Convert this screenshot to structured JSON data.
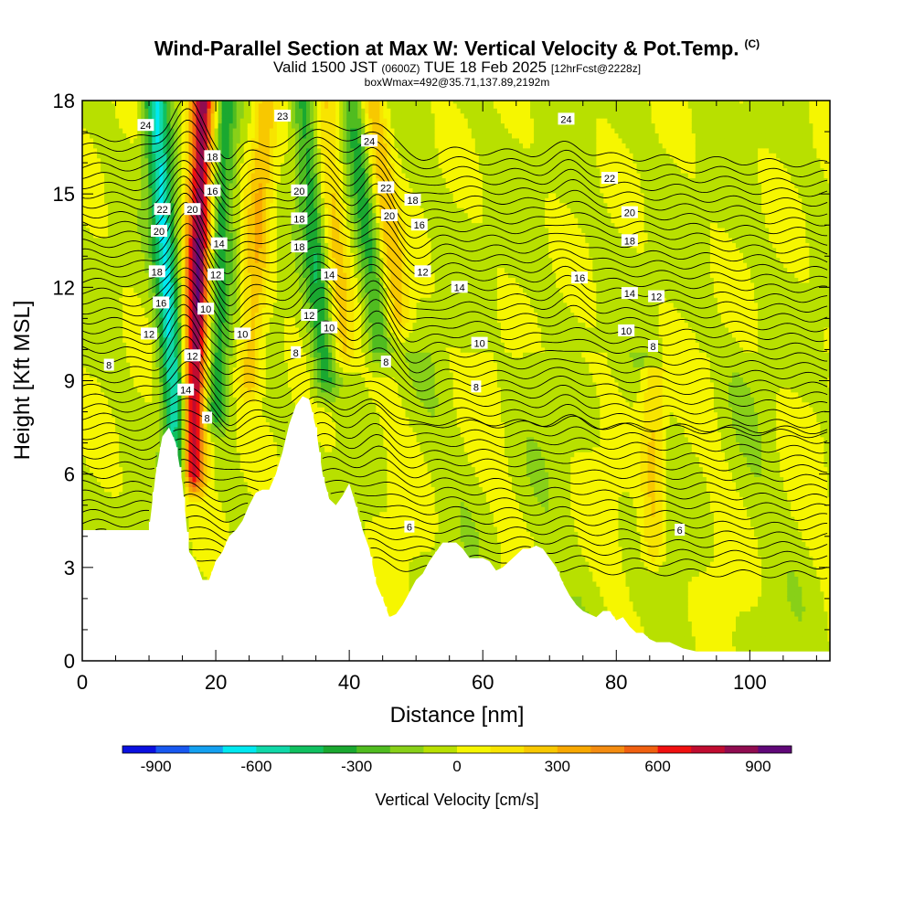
{
  "header": {
    "title": "Wind-Parallel Section at Max W: Vertical Velocity & Pot.Temp.",
    "copyright": "(C)",
    "valid_prefix": "Valid 1500 JST",
    "valid_utc": "(0600Z)",
    "valid_date": "TUE 18 Feb 2025",
    "forecast": "[12hrFcst@2228z]",
    "boxwmax": "boxWmax=492@35.71,137.89,2192m"
  },
  "chart_data": {
    "type": "heatmap",
    "title": "Wind-Parallel Section at Max W: Vertical Velocity & Pot.Temp.",
    "xlabel": "Distance [nm]",
    "ylabel": "Height [Kft MSL]",
    "xlim": [
      0,
      112
    ],
    "ylim": [
      0,
      18
    ],
    "x_ticks": [
      0,
      20,
      40,
      60,
      80,
      100
    ],
    "y_ticks": [
      0,
      3,
      6,
      9,
      12,
      15,
      18
    ],
    "colorbar": {
      "title": "Vertical Velocity [cm/s]",
      "tick_values": [
        -900,
        -600,
        -300,
        0,
        300,
        600,
        900
      ],
      "tick_labels": [
        "-900",
        "-600",
        "-300",
        "0",
        "300",
        "600",
        "900"
      ],
      "levels": [
        -1000,
        -900,
        -800,
        -700,
        -600,
        -500,
        -400,
        -300,
        -200,
        -100,
        0,
        100,
        200,
        300,
        400,
        500,
        600,
        700,
        800,
        900,
        1000
      ],
      "colors": [
        "#0a10e0",
        "#1858f0",
        "#14a0f0",
        "#00e8f0",
        "#10d8a8",
        "#10c060",
        "#1aa830",
        "#50bc20",
        "#88d018",
        "#b8e000",
        "#f6f600",
        "#f8e400",
        "#f8c800",
        "#f8a800",
        "#f48c10",
        "#f06010",
        "#f01010",
        "#c00c30",
        "#900c50",
        "#600878"
      ]
    },
    "terrain": {
      "x": [
        0,
        10,
        11,
        12,
        13,
        14,
        15,
        16,
        17,
        18,
        19,
        20,
        21,
        22,
        23,
        24,
        25,
        26,
        27,
        28,
        29,
        30,
        31,
        32,
        33,
        34,
        35,
        36,
        37,
        38,
        39,
        40,
        41,
        42,
        43,
        44,
        45,
        46,
        47,
        48,
        49,
        50,
        51,
        52,
        53,
        54,
        55,
        56,
        57,
        58,
        59,
        60,
        61,
        62,
        63,
        64,
        65,
        66,
        67,
        68,
        69,
        70,
        71,
        72,
        73,
        74,
        75,
        76,
        77,
        78,
        79,
        80,
        81,
        82,
        83,
        84,
        85,
        86,
        88,
        90,
        92,
        95,
        100,
        105,
        112
      ],
      "height": [
        4.2,
        4.2,
        6.0,
        7.2,
        7.5,
        7.0,
        5.7,
        3.5,
        3.2,
        2.6,
        2.6,
        3.2,
        3.5,
        4.0,
        4.2,
        4.5,
        5.0,
        5.4,
        5.5,
        5.5,
        6.0,
        6.7,
        7.6,
        8.2,
        8.5,
        8.4,
        7.5,
        6.0,
        5.2,
        5.0,
        5.3,
        5.7,
        5.0,
        4.2,
        3.6,
        2.5,
        2.0,
        1.4,
        1.5,
        1.8,
        2.2,
        2.6,
        2.8,
        3.2,
        3.5,
        3.8,
        3.8,
        3.8,
        3.6,
        3.3,
        3.3,
        3.3,
        3.2,
        2.9,
        3.0,
        3.2,
        3.4,
        3.6,
        3.6,
        3.7,
        3.6,
        3.3,
        3.0,
        2.5,
        2.1,
        1.8,
        1.6,
        1.5,
        1.4,
        1.6,
        1.6,
        1.3,
        1.4,
        1.1,
        0.9,
        0.9,
        0.7,
        0.6,
        0.6,
        0.4,
        0.3,
        0.3,
        0.3,
        0.3,
        0.3
      ]
    },
    "vertical_velocity_features": [
      {
        "kind": "updraft",
        "x_base": 16.5,
        "x_top": 18.0,
        "y_bottom": 6.0,
        "y_top": 18,
        "peak": 900
      },
      {
        "kind": "downdraft",
        "x_base": 14.5,
        "x_top": 11.0,
        "y_bottom": 6.0,
        "y_top": 18,
        "peak": -600
      },
      {
        "kind": "downdraft",
        "x_base": 20.0,
        "x_top": 21.5,
        "y_bottom": 8.0,
        "y_top": 18,
        "peak": -350
      },
      {
        "kind": "updraft",
        "x_base": 25.0,
        "x_top": 27.5,
        "y_bottom": 9.0,
        "y_top": 18,
        "peak": 300
      },
      {
        "kind": "downdraft",
        "x_base": 36.5,
        "x_top": 33.0,
        "y_bottom": 9.0,
        "y_top": 18,
        "peak": -350
      },
      {
        "kind": "updraft",
        "x_base": 39.0,
        "x_top": 36.5,
        "y_bottom": 10.0,
        "y_top": 18,
        "peak": 250
      },
      {
        "kind": "downdraft",
        "x_base": 44.5,
        "x_top": 40.5,
        "y_bottom": 10.0,
        "y_top": 18,
        "peak": -300
      },
      {
        "kind": "updraft",
        "x_base": 47.5,
        "x_top": 43.5,
        "y_bottom": 11.0,
        "y_top": 18,
        "peak": 300
      },
      {
        "kind": "updraft",
        "x_base": 85.5,
        "x_top": 85.5,
        "y_bottom": 3.5,
        "y_top": 9.0,
        "peak": 250
      }
    ],
    "potential_temperature_contours": {
      "levels_labeled": [
        6,
        8,
        10,
        12,
        14,
        16,
        18,
        20,
        22,
        24
      ],
      "labels": [
        {
          "text": "24",
          "x": 9.5,
          "y": 17.2
        },
        {
          "text": "22",
          "x": 12.0,
          "y": 14.5
        },
        {
          "text": "20",
          "x": 11.5,
          "y": 13.8
        },
        {
          "text": "18",
          "x": 11.2,
          "y": 12.5
        },
        {
          "text": "16",
          "x": 11.8,
          "y": 11.5
        },
        {
          "text": "12",
          "x": 10.0,
          "y": 10.5
        },
        {
          "text": "8",
          "x": 4.0,
          "y": 9.5
        },
        {
          "text": "18",
          "x": 19.5,
          "y": 16.2
        },
        {
          "text": "16",
          "x": 19.5,
          "y": 15.1
        },
        {
          "text": "20",
          "x": 16.5,
          "y": 14.5
        },
        {
          "text": "14",
          "x": 20.5,
          "y": 13.4
        },
        {
          "text": "12",
          "x": 20.0,
          "y": 12.4
        },
        {
          "text": "10",
          "x": 18.5,
          "y": 11.3
        },
        {
          "text": "12",
          "x": 16.5,
          "y": 9.8
        },
        {
          "text": "14",
          "x": 15.5,
          "y": 8.7
        },
        {
          "text": "8",
          "x": 18.7,
          "y": 7.8
        },
        {
          "text": "10",
          "x": 24.0,
          "y": 10.5
        },
        {
          "text": "23",
          "x": 30.0,
          "y": 17.5
        },
        {
          "text": "20",
          "x": 32.5,
          "y": 15.1
        },
        {
          "text": "18",
          "x": 32.5,
          "y": 14.2
        },
        {
          "text": "18",
          "x": 32.5,
          "y": 13.3
        },
        {
          "text": "14",
          "x": 37.0,
          "y": 12.4
        },
        {
          "text": "12",
          "x": 34.0,
          "y": 11.1
        },
        {
          "text": "10",
          "x": 37.0,
          "y": 10.7
        },
        {
          "text": "8",
          "x": 32.0,
          "y": 9.9
        },
        {
          "text": "24",
          "x": 43.0,
          "y": 16.7
        },
        {
          "text": "22",
          "x": 45.5,
          "y": 15.2
        },
        {
          "text": "20",
          "x": 46.0,
          "y": 14.3
        },
        {
          "text": "18",
          "x": 49.5,
          "y": 14.8
        },
        {
          "text": "16",
          "x": 50.5,
          "y": 14.0
        },
        {
          "text": "12",
          "x": 51.0,
          "y": 12.5
        },
        {
          "text": "8",
          "x": 45.5,
          "y": 9.6
        },
        {
          "text": "14",
          "x": 56.5,
          "y": 12.0
        },
        {
          "text": "10",
          "x": 59.5,
          "y": 10.2
        },
        {
          "text": "8",
          "x": 59.0,
          "y": 8.8
        },
        {
          "text": "6",
          "x": 49.0,
          "y": 4.3
        },
        {
          "text": "24",
          "x": 72.5,
          "y": 17.4
        },
        {
          "text": "22",
          "x": 79.0,
          "y": 15.5
        },
        {
          "text": "20",
          "x": 82.0,
          "y": 14.4
        },
        {
          "text": "18",
          "x": 82.0,
          "y": 13.5
        },
        {
          "text": "16",
          "x": 74.5,
          "y": 12.3
        },
        {
          "text": "14",
          "x": 82.0,
          "y": 11.8
        },
        {
          "text": "12",
          "x": 86.0,
          "y": 11.7
        },
        {
          "text": "10",
          "x": 81.5,
          "y": 10.6
        },
        {
          "text": "8",
          "x": 85.5,
          "y": 10.1
        },
        {
          "text": "6",
          "x": 89.5,
          "y": 4.2
        }
      ]
    }
  }
}
